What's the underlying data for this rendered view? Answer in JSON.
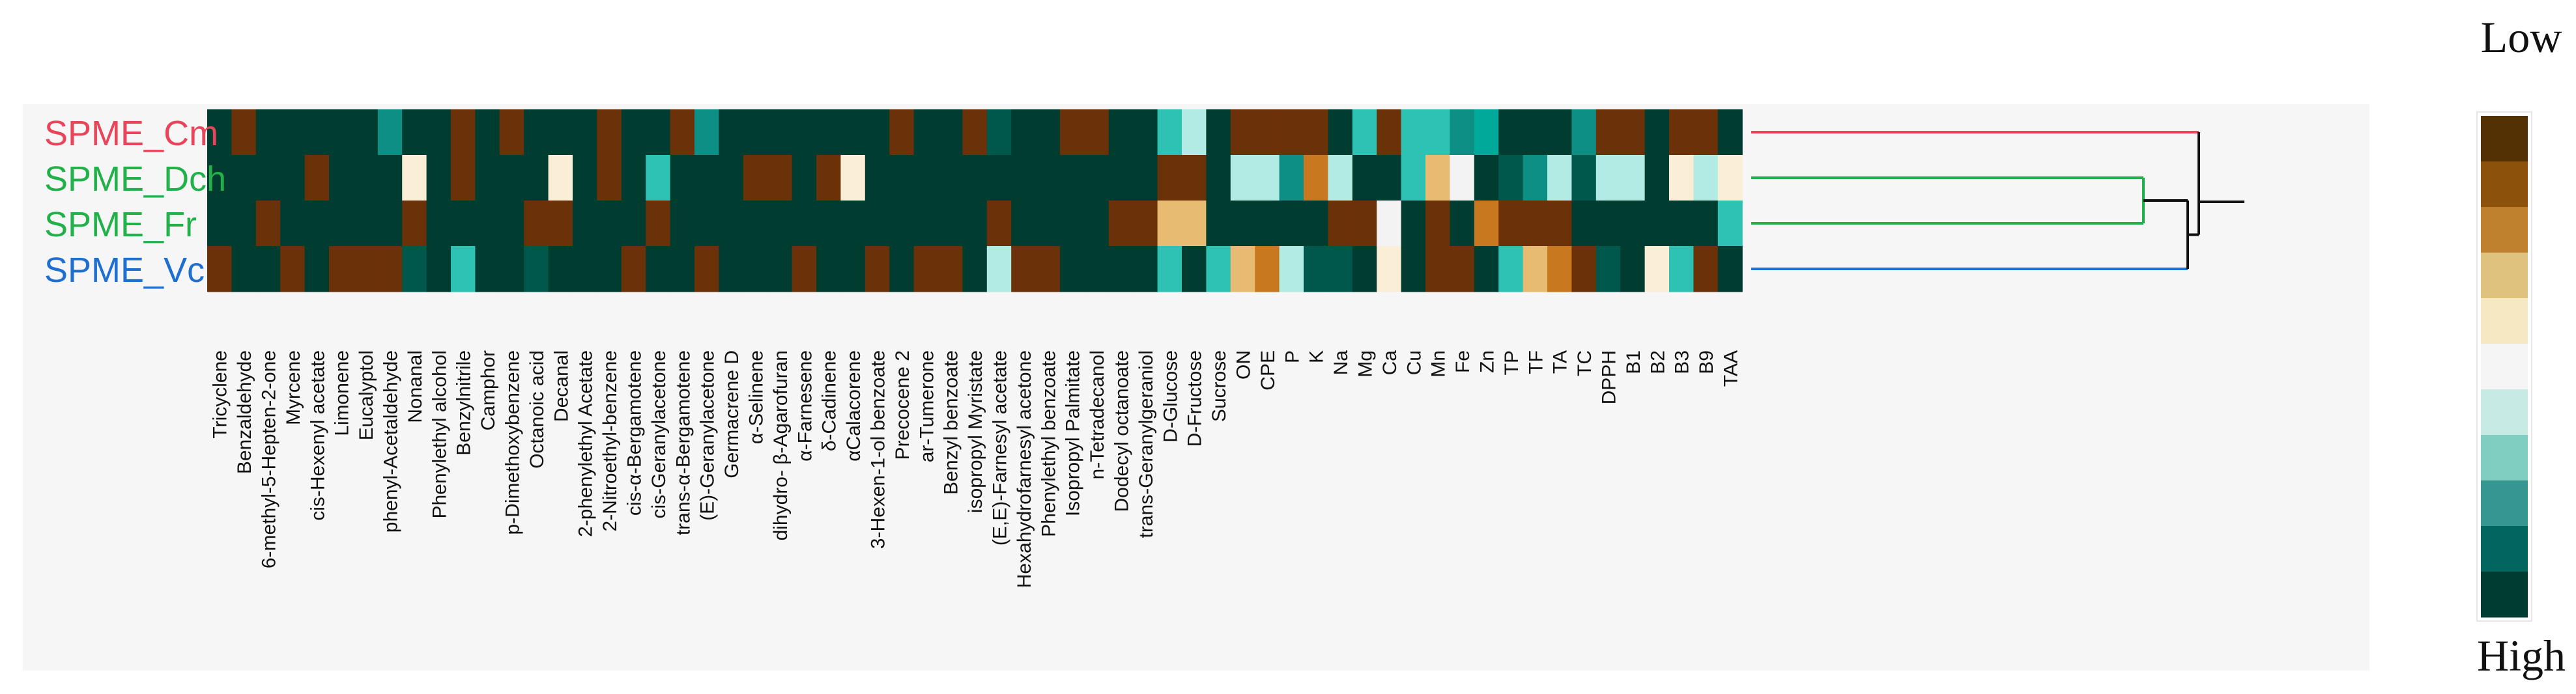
{
  "chart_data": {
    "type": "heatmap",
    "rows": [
      {
        "name": "SPME_Cm",
        "color": "#e8445a"
      },
      {
        "name": "SPME_Dch",
        "color": "#22b04a"
      },
      {
        "name": "SPME_Fr",
        "color": "#22b04a"
      },
      {
        "name": "SPME_Vc",
        "color": "#1f6fd1"
      }
    ],
    "columns": [
      "Tricyclene",
      "Benzaldehyde",
      "6-methyl-5-Hepten-2-one",
      "Myrcene",
      "cis-Hexenyl acetate",
      "Limonene",
      "Eucalyptol",
      "phenyl-Acetaldehyde",
      "Nonanal",
      "Phenylethyl alcohol",
      "Benzylnitrile",
      "Camphor",
      "p-Dimethoxybenzene",
      "Octanoic acid",
      "Decanal",
      "2-phenylethyl Acetate",
      "2-Nitroethyl-benzene",
      "cis-α-Bergamotene",
      "cis-Geranylacetone",
      "trans-α-Bergamotene",
      "(E)-Geranylacetone",
      "Germacrene D",
      "α-Selinene",
      "dihydro- β-Agarofuran",
      "α-Farnesene",
      "δ-Cadinene",
      "αCalacorene",
      "3-Hexen-1-ol benzoate",
      "Precocene 2",
      "ar-Tumerone",
      "Benzyl benzoate",
      "isopropyl Myristate",
      "(E,E)-Farnesyl acetate",
      "Hexahydrofarnesyl acetone",
      "Phenylethyl benzoate",
      "Isopropyl Palmitate",
      "n-Tetradecanol",
      "Dodecyl octanoate",
      "trans-Geranylgeraniol",
      "D-Glucose",
      "D-Fructose",
      "Sucrose",
      "ON",
      "CPE",
      "P",
      "K",
      "Na",
      "Mg",
      "Ca",
      "Cu",
      "Mn",
      "Fe",
      "Zn",
      "TP",
      "TF",
      "TA",
      "TC",
      "DPPH",
      "B1",
      "B2",
      "B3",
      "B9",
      "TAA"
    ],
    "values": [
      [
        0,
        1,
        0,
        0,
        0,
        0,
        0,
        -2,
        0,
        0,
        1,
        0,
        1,
        0,
        0,
        0,
        1,
        0,
        0,
        1,
        -2,
        0,
        0,
        0,
        0,
        0,
        0,
        0,
        1,
        0,
        0,
        1,
        -1,
        0,
        0,
        1,
        1,
        0,
        0,
        -3,
        -4,
        0,
        1,
        1,
        1,
        1,
        0,
        -3,
        1,
        -3,
        -3,
        -2,
        -5,
        0,
        0,
        0,
        -2,
        1,
        1,
        0,
        1,
        1,
        0
      ],
      [
        0,
        0,
        0,
        0,
        1,
        0,
        0,
        0,
        4,
        0,
        1,
        0,
        0,
        0,
        4,
        0,
        1,
        0,
        -3,
        0,
        0,
        0,
        1,
        1,
        0,
        1,
        4,
        0,
        0,
        0,
        0,
        0,
        0,
        0,
        0,
        0,
        0,
        0,
        0,
        1,
        1,
        0,
        -4,
        -4,
        -2,
        2,
        -4,
        0,
        0,
        -3,
        3,
        5,
        0,
        -1,
        -2,
        -4,
        -1,
        -4,
        -4,
        0,
        4,
        -4,
        4
      ],
      [
        0,
        0,
        1,
        0,
        0,
        0,
        0,
        0,
        1,
        0,
        0,
        0,
        0,
        1,
        1,
        0,
        0,
        0,
        1,
        0,
        0,
        0,
        0,
        0,
        0,
        0,
        0,
        0,
        0,
        0,
        0,
        0,
        1,
        0,
        0,
        0,
        0,
        1,
        1,
        3,
        3,
        0,
        0,
        0,
        0,
        0,
        1,
        1,
        5,
        0,
        1,
        0,
        2,
        1,
        1,
        1,
        0,
        0,
        0,
        0,
        0,
        0,
        -3
      ],
      [
        1,
        0,
        0,
        1,
        0,
        1,
        1,
        1,
        -1,
        0,
        -3,
        0,
        0,
        -1,
        0,
        0,
        0,
        1,
        0,
        0,
        1,
        0,
        0,
        0,
        1,
        0,
        0,
        1,
        0,
        1,
        1,
        0,
        -4,
        1,
        1,
        0,
        0,
        0,
        0,
        -3,
        0,
        -3,
        3,
        2,
        -4,
        -1,
        -1,
        0,
        4,
        0,
        1,
        1,
        0,
        -3,
        3,
        2,
        1,
        -1,
        0,
        4,
        -3,
        1,
        0
      ]
    ],
    "scale_min": -5,
    "scale_max": 5,
    "dendrogram": {
      "clusters": [
        [
          "SPME_Dch",
          "SPME_Fr"
        ],
        [
          "SPME_Vc"
        ],
        [
          "SPME_Cm"
        ]
      ]
    }
  },
  "legend": {
    "low_label": "Low",
    "high_label": "High",
    "colors": [
      "#543005",
      "#8c510a",
      "#bf812d",
      "#dfc27d",
      "#f6e8c3",
      "#f5f5f5",
      "#c7eae5",
      "#80cdc1",
      "#35978f",
      "#01665e",
      "#003c30"
    ]
  },
  "palette": {
    "-5": "#01a99a",
    "-4": "#b2ebe3",
    "-3": "#2ec2b4",
    "-2": "#0d8f86",
    "-1": "#00574c",
    "0": "#003c30",
    "1": "#6b3108",
    "2": "#c8781f",
    "3": "#e8bb72",
    "4": "#faeed7",
    "5": "#f3f3f3"
  }
}
